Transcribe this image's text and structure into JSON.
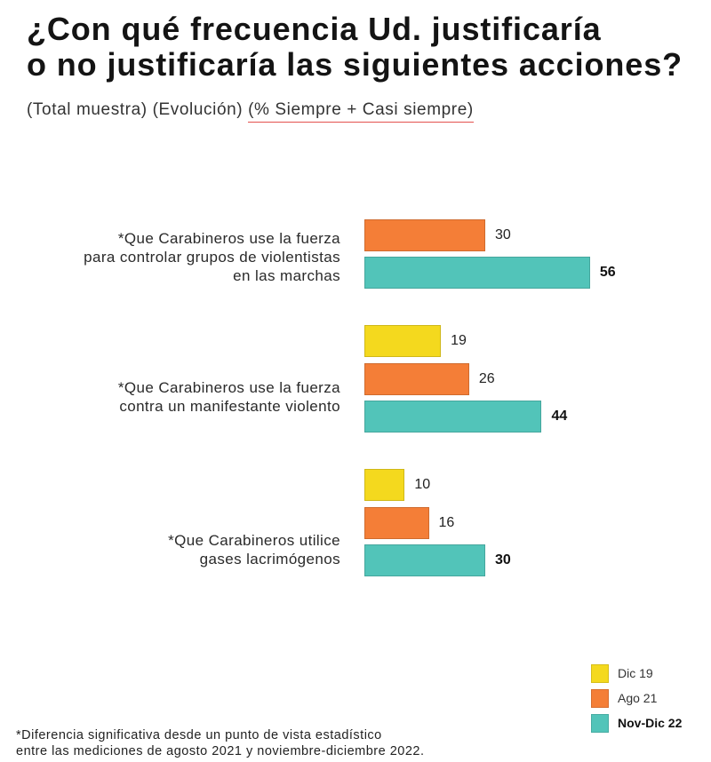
{
  "chart_data": {
    "type": "bar",
    "orientation": "horizontal",
    "title": [
      "¿Con qué frecuencia Ud. justificaría",
      "o no justificaría las siguientes acciones?"
    ],
    "subtitle": {
      "prefix": "(Total muestra) (Evolución) ",
      "underlined": "(% Siempre + Casi siempre)"
    },
    "categories": [
      [
        "*Que Carabineros use la fuerza",
        "para controlar grupos de violentistas",
        "en las marchas"
      ],
      [
        "*Que Carabineros use la fuerza",
        "contra un manifestante violento"
      ],
      [
        "*Que Carabineros utilice",
        "gases lacrimógenos"
      ]
    ],
    "series": [
      {
        "name": "Dic 19",
        "color": "#F4D91E",
        "values": [
          null,
          19,
          10
        ]
      },
      {
        "name": "Ago 21",
        "color": "#F47E37",
        "values": [
          30,
          26,
          16
        ]
      },
      {
        "name": "Nov-Dic 22",
        "color": "#52C4B9",
        "values": [
          56,
          44,
          30
        ]
      }
    ],
    "xlim": [
      0,
      60
    ],
    "legend": "bottom-right",
    "footnote": [
      "*Diferencia significativa desde un punto de vista estadístico",
      "entre las mediciones de agosto 2021 y noviembre-diciembre 2022."
    ]
  }
}
